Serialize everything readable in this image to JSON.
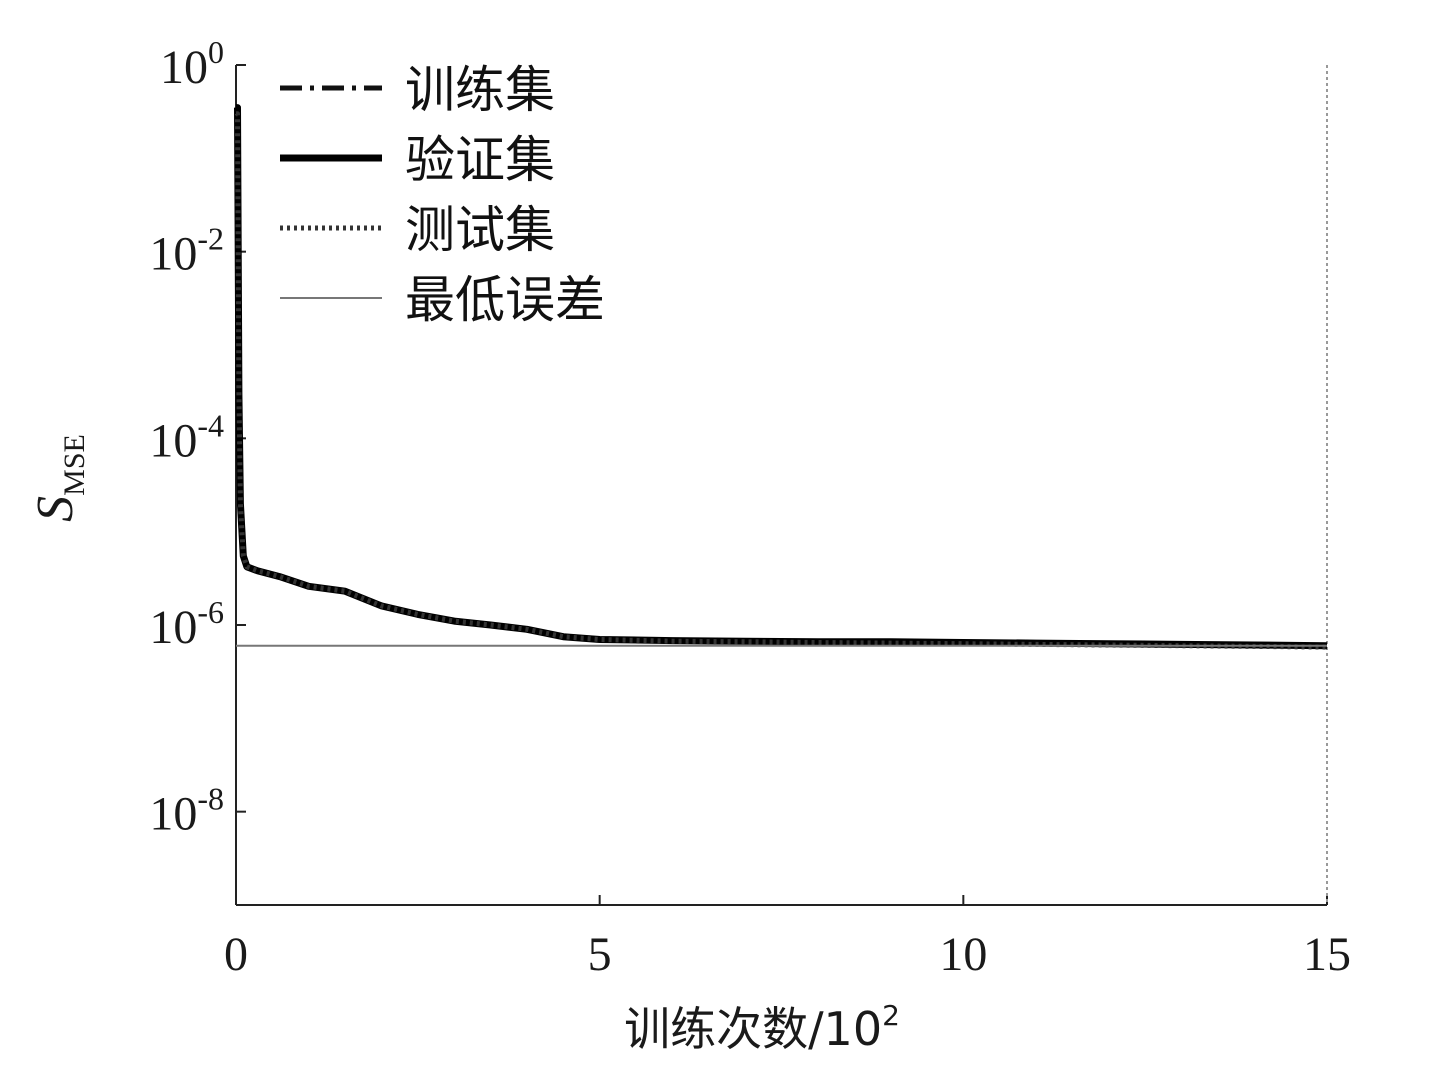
{
  "chart_data": {
    "type": "line",
    "title": "",
    "xlabel": "训练次数/10",
    "xlabel_exp": "2",
    "ylabel_main": "S",
    "ylabel_sub": "MSE",
    "y_scale": "log",
    "xlim": [
      0,
      15
    ],
    "ylim": [
      1e-09,
      1
    ],
    "x_ticks": [
      {
        "value": 0,
        "label": "0"
      },
      {
        "value": 5,
        "label": "5"
      },
      {
        "value": 10,
        "label": "10"
      },
      {
        "value": 15,
        "label": "15"
      }
    ],
    "y_ticks": [
      {
        "exp": 0,
        "base": "10",
        "sup": "0"
      },
      {
        "exp": -2,
        "base": "10",
        "sup": "-2"
      },
      {
        "exp": -4,
        "base": "10",
        "sup": "-4"
      },
      {
        "exp": -6,
        "base": "10",
        "sup": "-6"
      },
      {
        "exp": -8,
        "base": "10",
        "sup": "-8"
      }
    ],
    "legend_position": "top-left",
    "grid": false,
    "series": [
      {
        "name": "训练集",
        "style": "dashdot",
        "color": "#111111",
        "x": [
          0,
          0.02,
          0.04,
          0.06,
          0.1,
          0.15,
          0.3,
          0.6,
          1.0,
          1.5,
          2.0,
          2.5,
          3.0,
          3.5,
          4.0,
          4.5,
          5.0,
          6.0,
          7.0,
          8.0,
          9.0,
          10.0,
          11.0,
          12.0,
          13.0,
          14.0,
          15.0
        ],
        "y": [
          0.35,
          0.35,
          0.0003,
          2e-05,
          5.5e-06,
          4.2e-06,
          3.8e-06,
          3.3e-06,
          2.6e-06,
          2.3e-06,
          1.6e-06,
          1.3e-06,
          1.1e-06,
          1e-06,
          9e-07,
          7.5e-07,
          7e-07,
          6.8e-07,
          6.7e-07,
          6.6e-07,
          6.6e-07,
          6.5e-07,
          6.4e-07,
          6.3e-07,
          6.2e-07,
          6.1e-07,
          6e-07
        ]
      },
      {
        "name": "验证集",
        "style": "solid",
        "color": "#000000",
        "x": [
          0,
          0.02,
          0.04,
          0.06,
          0.1,
          0.15,
          0.3,
          0.6,
          1.0,
          1.5,
          2.0,
          2.5,
          3.0,
          3.5,
          4.0,
          4.5,
          5.0,
          6.0,
          7.0,
          8.0,
          9.0,
          10.0,
          11.0,
          12.0,
          13.0,
          14.0,
          15.0
        ],
        "y": [
          0.35,
          0.35,
          0.0003,
          2e-05,
          5.5e-06,
          4.2e-06,
          3.8e-06,
          3.3e-06,
          2.6e-06,
          2.3e-06,
          1.6e-06,
          1.3e-06,
          1.1e-06,
          1e-06,
          9e-07,
          7.5e-07,
          7e-07,
          6.8e-07,
          6.7e-07,
          6.6e-07,
          6.6e-07,
          6.5e-07,
          6.4e-07,
          6.3e-07,
          6.2e-07,
          6.1e-07,
          6e-07
        ]
      },
      {
        "name": "测试集",
        "style": "dotted",
        "color": "#333333",
        "x": [
          0,
          0.02,
          0.04,
          0.06,
          0.1,
          0.15,
          0.3,
          0.6,
          1.0,
          1.5,
          2.0,
          2.5,
          3.0,
          3.5,
          4.0,
          4.5,
          5.0,
          6.0,
          7.0,
          8.0,
          9.0,
          10.0,
          11.0,
          12.0,
          13.0,
          14.0,
          15.0
        ],
        "y": [
          0.3,
          0.3,
          0.0003,
          2e-05,
          5.5e-06,
          4.2e-06,
          3.8e-06,
          3.3e-06,
          2.6e-06,
          2.3e-06,
          1.6e-06,
          1.3e-06,
          1.1e-06,
          1e-06,
          9e-07,
          7.5e-07,
          7e-07,
          6.7e-07,
          6.6e-07,
          6.5e-07,
          6.4e-07,
          6.3e-07,
          6.2e-07,
          6.1e-07,
          6e-07,
          5.9e-07,
          5.8e-07
        ]
      },
      {
        "name": "最低误差",
        "style": "thin",
        "color": "#777777",
        "x": [
          0,
          15
        ],
        "y": [
          6e-07,
          6e-07
        ]
      }
    ],
    "vertical_marker": {
      "x": 15,
      "color": "#999999",
      "style": "dotted"
    }
  }
}
